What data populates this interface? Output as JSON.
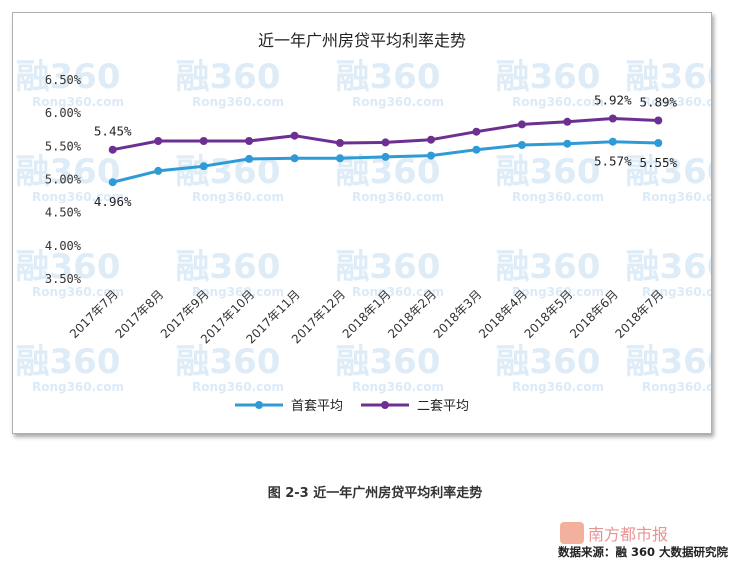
{
  "chart_data": {
    "type": "line",
    "title": "近一年广州房贷平均利率走势",
    "categories": [
      "2017年7月",
      "2017年8月",
      "2017年9月",
      "2017年10月",
      "2017年11月",
      "2017年12月",
      "2018年1月",
      "2018年2月",
      "2018年3月",
      "2018年4月",
      "2018年5月",
      "2018年6月",
      "2018年7月"
    ],
    "series": [
      {
        "name": "首套平均",
        "color": "#2f9bd6",
        "values": [
          4.96,
          5.13,
          5.2,
          5.31,
          5.32,
          5.32,
          5.34,
          5.36,
          5.45,
          5.52,
          5.54,
          5.57,
          5.55
        ]
      },
      {
        "name": "二套平均",
        "color": "#6d2f91",
        "values": [
          5.45,
          5.58,
          5.58,
          5.58,
          5.66,
          5.55,
          5.56,
          5.6,
          5.72,
          5.83,
          5.87,
          5.92,
          5.89
        ]
      }
    ],
    "ylim": [
      3.5,
      6.5
    ],
    "yticks": [
      "3.50%",
      "4.00%",
      "4.50%",
      "5.00%",
      "5.50%",
      "6.00%",
      "6.50%"
    ],
    "data_labels": [
      {
        "series": 0,
        "index": 0,
        "text": "4.96%"
      },
      {
        "series": 1,
        "index": 0,
        "text": "5.45%"
      },
      {
        "series": 0,
        "index": 11,
        "text": "5.57%"
      },
      {
        "series": 0,
        "index": 12,
        "text": "5.55%"
      },
      {
        "series": 1,
        "index": 11,
        "text": "5.92%"
      },
      {
        "series": 1,
        "index": 12,
        "text": "5.89%"
      }
    ],
    "grid": false,
    "legend": "bottom"
  },
  "watermark": {
    "main": "融360",
    "sub": "Rong360.com"
  },
  "caption": "图 2-3 近一年广州房贷平均利率走势",
  "source": "数据来源：融 360 大数据研究院",
  "source_logo_text": "南方都市报"
}
